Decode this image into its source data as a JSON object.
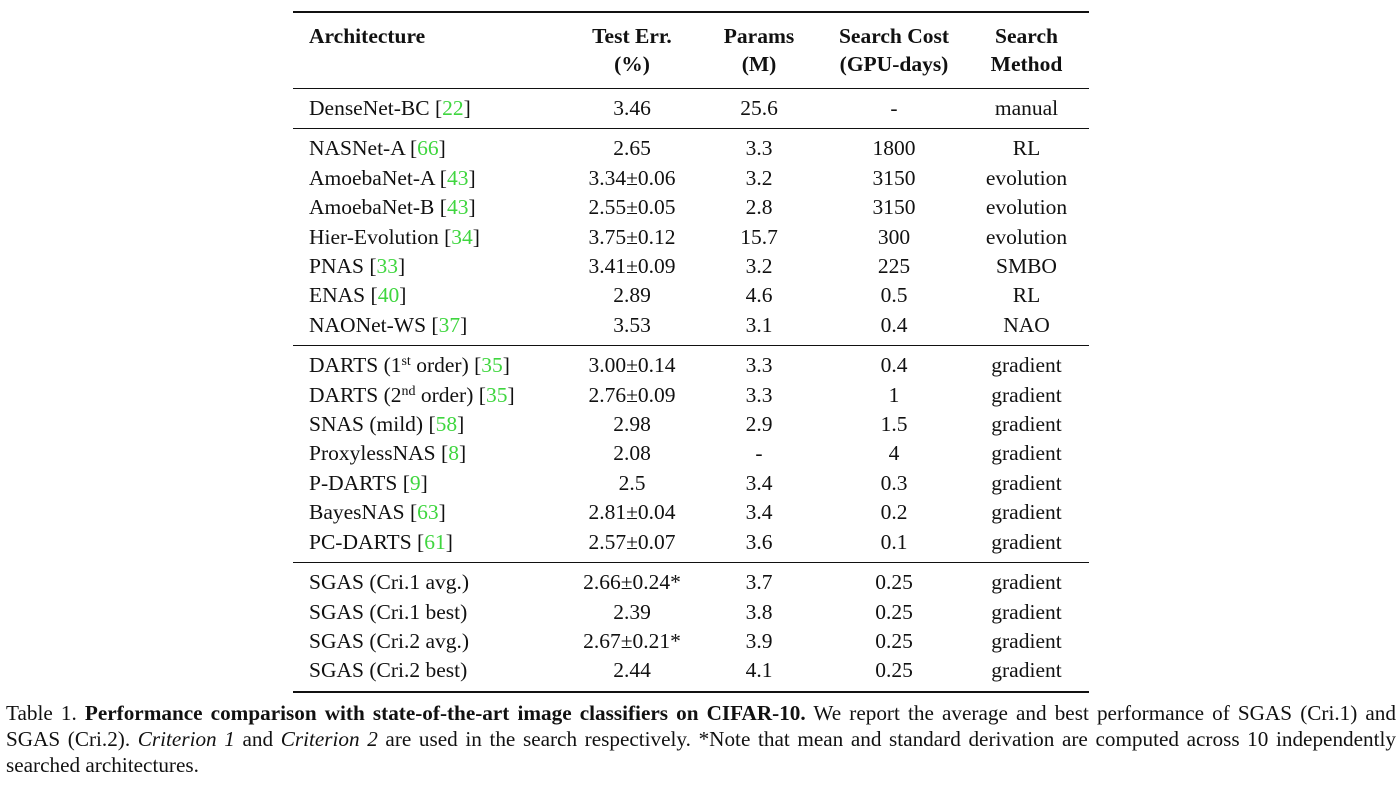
{
  "table": {
    "headers": [
      [
        "Architecture",
        ""
      ],
      [
        "Test Err.",
        "(%)"
      ],
      [
        "Params",
        "(M)"
      ],
      [
        "Search Cost",
        "(GPU-days)"
      ],
      [
        "Search",
        "Method"
      ]
    ],
    "groups": [
      [
        {
          "name": "DenseNet-BC ",
          "sup": "",
          "post": "",
          "ref": "22",
          "err": "3.46",
          "params": "25.6",
          "cost": "-",
          "method": "manual"
        }
      ],
      [
        {
          "name": "NASNet-A ",
          "sup": "",
          "post": "",
          "ref": "66",
          "err": "2.65",
          "params": "3.3",
          "cost": "1800",
          "method": "RL"
        },
        {
          "name": "AmoebaNet-A ",
          "sup": "",
          "post": "",
          "ref": "43",
          "err": "3.34±0.06",
          "params": "3.2",
          "cost": "3150",
          "method": "evolution"
        },
        {
          "name": "AmoebaNet-B ",
          "sup": "",
          "post": "",
          "ref": "43",
          "err": "2.55±0.05",
          "params": "2.8",
          "cost": "3150",
          "method": "evolution"
        },
        {
          "name": "Hier-Evolution ",
          "sup": "",
          "post": "",
          "ref": "34",
          "err": "3.75±0.12",
          "params": "15.7",
          "cost": "300",
          "method": "evolution"
        },
        {
          "name": "PNAS ",
          "sup": "",
          "post": "",
          "ref": "33",
          "err": "3.41±0.09",
          "params": "3.2",
          "cost": "225",
          "method": "SMBO"
        },
        {
          "name": "ENAS ",
          "sup": "",
          "post": "",
          "ref": "40",
          "err": "2.89",
          "params": "4.6",
          "cost": "0.5",
          "method": "RL"
        },
        {
          "name": "NAONet-WS ",
          "sup": "",
          "post": "",
          "ref": "37",
          "err": "3.53",
          "params": "3.1",
          "cost": "0.4",
          "method": "NAO"
        }
      ],
      [
        {
          "name": "DARTS (1",
          "sup": "st",
          "post": " order) ",
          "ref": "35",
          "err": "3.00±0.14",
          "params": "3.3",
          "cost": "0.4",
          "method": "gradient"
        },
        {
          "name": "DARTS (2",
          "sup": "nd",
          "post": " order) ",
          "ref": "35",
          "err": "2.76±0.09",
          "params": "3.3",
          "cost": "1",
          "method": "gradient"
        },
        {
          "name": "SNAS (mild) ",
          "sup": "",
          "post": "",
          "ref": "58",
          "err": "2.98",
          "params": "2.9",
          "cost": "1.5",
          "method": "gradient"
        },
        {
          "name": "ProxylessNAS ",
          "sup": "",
          "post": "",
          "ref": "8",
          "err": "2.08",
          "params": "-",
          "cost": "4",
          "method": "gradient"
        },
        {
          "name": "P-DARTS ",
          "sup": "",
          "post": "",
          "ref": "9",
          "err": "2.5",
          "params": "3.4",
          "cost": "0.3",
          "method": "gradient"
        },
        {
          "name": "BayesNAS ",
          "sup": "",
          "post": "",
          "ref": "63",
          "err": "2.81±0.04",
          "params": "3.4",
          "cost": "0.2",
          "method": "gradient"
        },
        {
          "name": "PC-DARTS ",
          "sup": "",
          "post": "",
          "ref": "61",
          "err": "2.57±0.07",
          "params": "3.6",
          "cost": "0.1",
          "method": "gradient"
        }
      ],
      [
        {
          "name": "SGAS (Cri.1 avg.)",
          "sup": "",
          "post": "",
          "ref": "",
          "err": "2.66±0.24*",
          "params": "3.7",
          "cost": "0.25",
          "method": "gradient"
        },
        {
          "name": "SGAS (Cri.1 best)",
          "sup": "",
          "post": "",
          "ref": "",
          "err": "2.39",
          "params": "3.8",
          "cost": "0.25",
          "method": "gradient"
        },
        {
          "name": "SGAS (Cri.2 avg.)",
          "sup": "",
          "post": "",
          "ref": "",
          "err": "2.67±0.21*",
          "params": "3.9",
          "cost": "0.25",
          "method": "gradient"
        },
        {
          "name": "SGAS (Cri.2 best)",
          "sup": "",
          "post": "",
          "ref": "",
          "err": "2.44",
          "params": "4.1",
          "cost": "0.25",
          "method": "gradient"
        }
      ]
    ]
  },
  "caption": {
    "label": "Table 1. ",
    "bold": "Performance comparison with state-of-the-art image classifiers on CIFAR-10.",
    "t1": " We report the average and best performance of SGAS (Cri.1) and SGAS (Cri.2). ",
    "i1": "Criterion 1",
    "t2": " and ",
    "i2": "Criterion 2",
    "t3": " are used in the search respectively. *Note that mean and standard derivation are computed across 10 independently searched architectures."
  },
  "colors": {
    "reference_link": "#3fd63f"
  }
}
